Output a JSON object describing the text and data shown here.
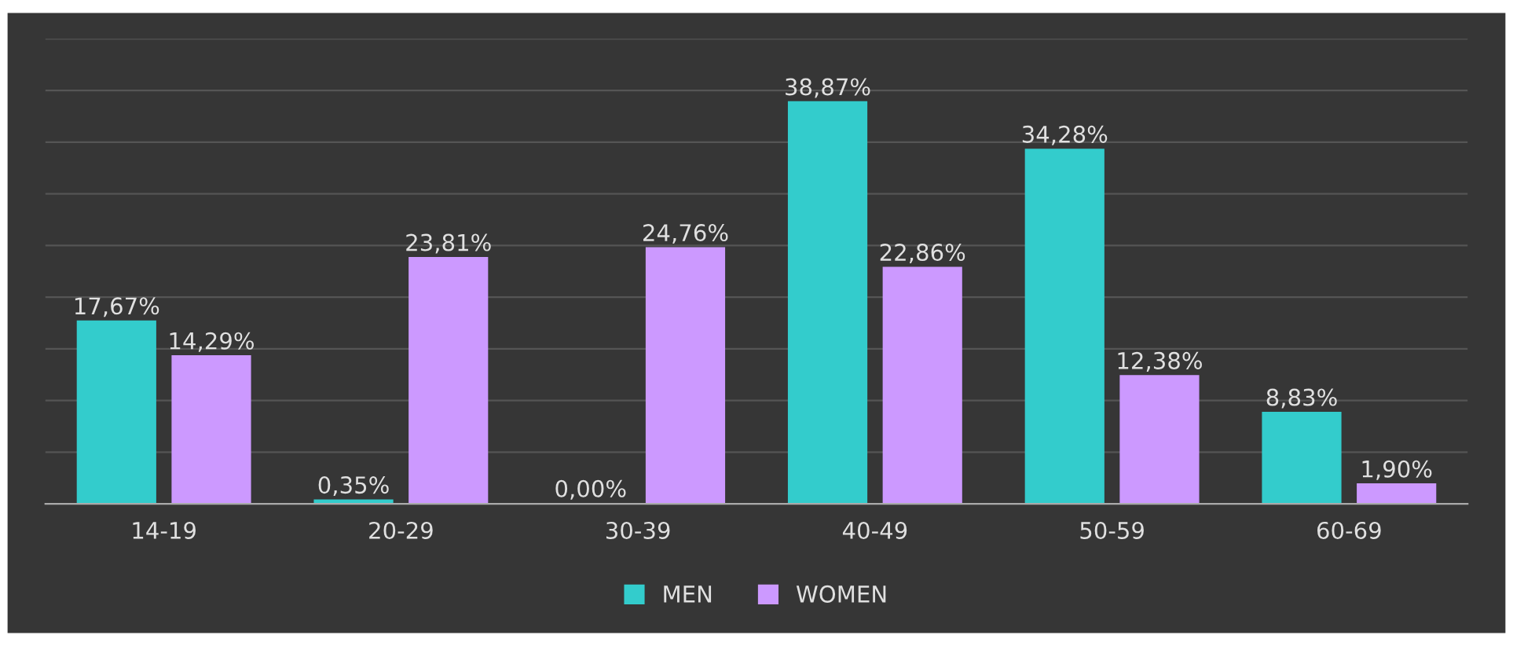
{
  "chart_data": {
    "type": "bar",
    "categories": [
      "14-19",
      "20-29",
      "30-39",
      "40-49",
      "50-59",
      "60-69"
    ],
    "series": [
      {
        "name": "MEN",
        "color": "#33cccc",
        "values": [
          17.67,
          0.35,
          0.0,
          38.87,
          34.28,
          8.83
        ],
        "value_labels": [
          "17,67%",
          "0,35%",
          "0,00%",
          "38,87%",
          "34,28%",
          "8,83%"
        ]
      },
      {
        "name": "WOMEN",
        "color": "#cc99ff",
        "values": [
          14.29,
          23.81,
          24.76,
          22.86,
          12.38,
          1.9
        ],
        "value_labels": [
          "14,29%",
          "23,81%",
          "24,76%",
          "22,86%",
          "12,38%",
          "1,90%"
        ]
      }
    ],
    "ylim": [
      0,
      45
    ],
    "yticks": [
      {
        "value": 0,
        "label": null
      },
      {
        "value": 5,
        "label": null
      },
      {
        "value": 10,
        "label": null
      },
      {
        "value": 15,
        "label": null
      },
      {
        "value": 20,
        "label": null
      },
      {
        "value": 25,
        "label": null
      },
      {
        "value": 30,
        "label": null
      },
      {
        "value": 35,
        "label": null
      },
      {
        "value": 40,
        "label": null
      },
      {
        "value": 45,
        "label": null
      }
    ],
    "tick_labels": "x",
    "grid": "y",
    "legend": "bottom"
  }
}
